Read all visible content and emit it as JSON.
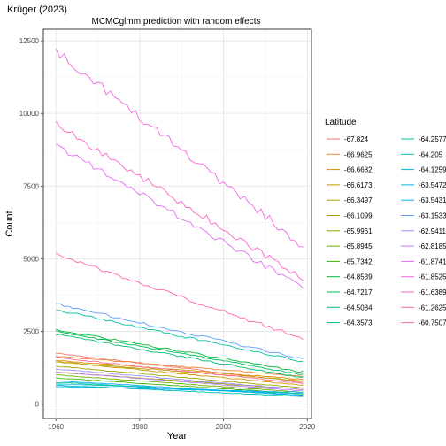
{
  "chart_data": {
    "type": "line",
    "title": "Krüger (2023)",
    "subtitle": "MCMCglmm prediction with random effects",
    "xlabel": "Year",
    "ylabel": "Count",
    "xlim": [
      1957,
      2021
    ],
    "ylim": [
      -500,
      12900
    ],
    "x_ticks": [
      1960,
      1980,
      2000,
      2020
    ],
    "y_ticks": [
      0,
      2500,
      5000,
      7500,
      10000,
      12500
    ],
    "x_tick_labels": [
      "1960",
      "1980",
      "2000",
      "2020"
    ],
    "y_tick_labels": [
      "0",
      "2500",
      "5000",
      "7500",
      "10000",
      "12500"
    ],
    "grid": true,
    "legend": {
      "title": "Latitude",
      "placement": "right"
    },
    "x_start": 1960,
    "x_end": 2019,
    "series": [
      {
        "name": "-67.824",
        "color": "#F8766D",
        "start": 1750,
        "end": 750
      },
      {
        "name": "-66.9625",
        "color": "#EB8335",
        "start": 1650,
        "end": 950
      },
      {
        "name": "-66.6682",
        "color": "#DE8C00",
        "start": 1500,
        "end": 850
      },
      {
        "name": "-66.6173",
        "color": "#CD9600",
        "start": 1450,
        "end": 650
      },
      {
        "name": "-66.3497",
        "color": "#B79F00",
        "start": 1450,
        "end": 800
      },
      {
        "name": "-66.1099",
        "color": "#A3A500",
        "start": 1300,
        "end": 550
      },
      {
        "name": "-65.9961",
        "color": "#8AAB00",
        "start": 1100,
        "end": 500
      },
      {
        "name": "-65.8945",
        "color": "#6BB100",
        "start": 1000,
        "end": 400
      },
      {
        "name": "-65.7342",
        "color": "#39B600",
        "start": 900,
        "end": 350
      },
      {
        "name": "-64.8539",
        "color": "#00BA38",
        "start": 2550,
        "end": 1100
      },
      {
        "name": "-64.7217",
        "color": "#00BC59",
        "start": 2500,
        "end": 1000
      },
      {
        "name": "-64.5084",
        "color": "#00BE70",
        "start": 2400,
        "end": 900
      },
      {
        "name": "-64.3573",
        "color": "#00C08B",
        "start": 750,
        "end": 300
      },
      {
        "name": "-64.2577",
        "color": "#00C0A4",
        "start": 3250,
        "end": 1450
      },
      {
        "name": "-64.205",
        "color": "#00BFBA",
        "start": 650,
        "end": 250
      },
      {
        "name": "-64.1259",
        "color": "#00BCD2",
        "start": 700,
        "end": 350
      },
      {
        "name": "-63.5472",
        "color": "#00B4EF",
        "start": 600,
        "end": 400
      },
      {
        "name": "-63.5431",
        "color": "#00ABFD",
        "start": 800,
        "end": 300
      },
      {
        "name": "-63.1533",
        "color": "#619CFF",
        "start": 3450,
        "end": 1550
      },
      {
        "name": "-62.9411",
        "color": "#9F8CFF",
        "start": 1200,
        "end": 500
      },
      {
        "name": "-62.8185",
        "color": "#C77CFF",
        "start": 1100,
        "end": 450
      },
      {
        "name": "-61.8741",
        "color": "#E36EF6",
        "start": 8900,
        "end": 4000
      },
      {
        "name": "-61.8525",
        "color": "#F565E3",
        "start": 12150,
        "end": 5450
      },
      {
        "name": "-61.6389",
        "color": "#FF61C9",
        "start": 9650,
        "end": 4300
      },
      {
        "name": "-61.2625",
        "color": "#FF64AE",
        "start": 5150,
        "end": 2250
      },
      {
        "name": "-60.7507",
        "color": "#FF6B94",
        "start": 1600,
        "end": 700
      }
    ]
  }
}
